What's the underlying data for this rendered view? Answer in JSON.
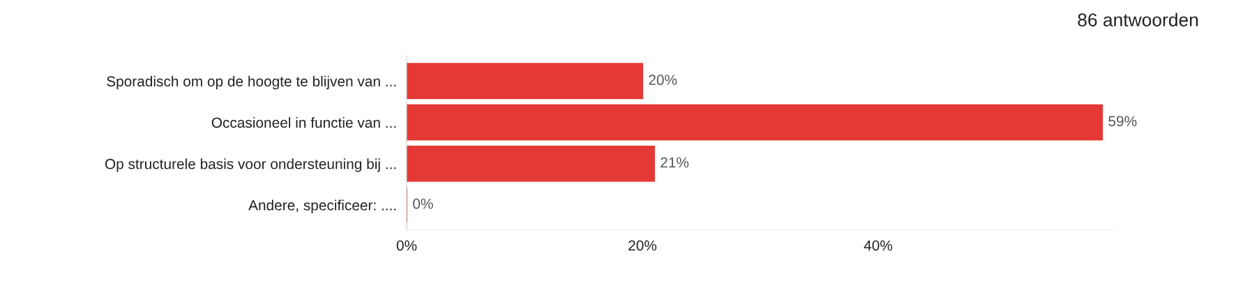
{
  "chart_data": {
    "type": "bar",
    "orientation": "horizontal",
    "title": "86 antwoorden",
    "categories": [
      "Sporadisch om op de hoogte te blijven van ...",
      "Occasioneel in functie van ...",
      "Op structurele basis voor ondersteuning bij ...",
      "Andere, specificeer: ...."
    ],
    "values": [
      20,
      59,
      21,
      0
    ],
    "color": "#e53935",
    "data_labels": true,
    "value_labels": [
      "20%",
      "59%",
      "21%",
      "0%"
    ],
    "xlim": [
      0,
      60
    ],
    "xticks": [
      {
        "value": 0,
        "label": "0%"
      },
      {
        "value": 20,
        "label": "20%"
      },
      {
        "value": 40,
        "label": "40%"
      }
    ],
    "grid": false,
    "legend": false
  }
}
